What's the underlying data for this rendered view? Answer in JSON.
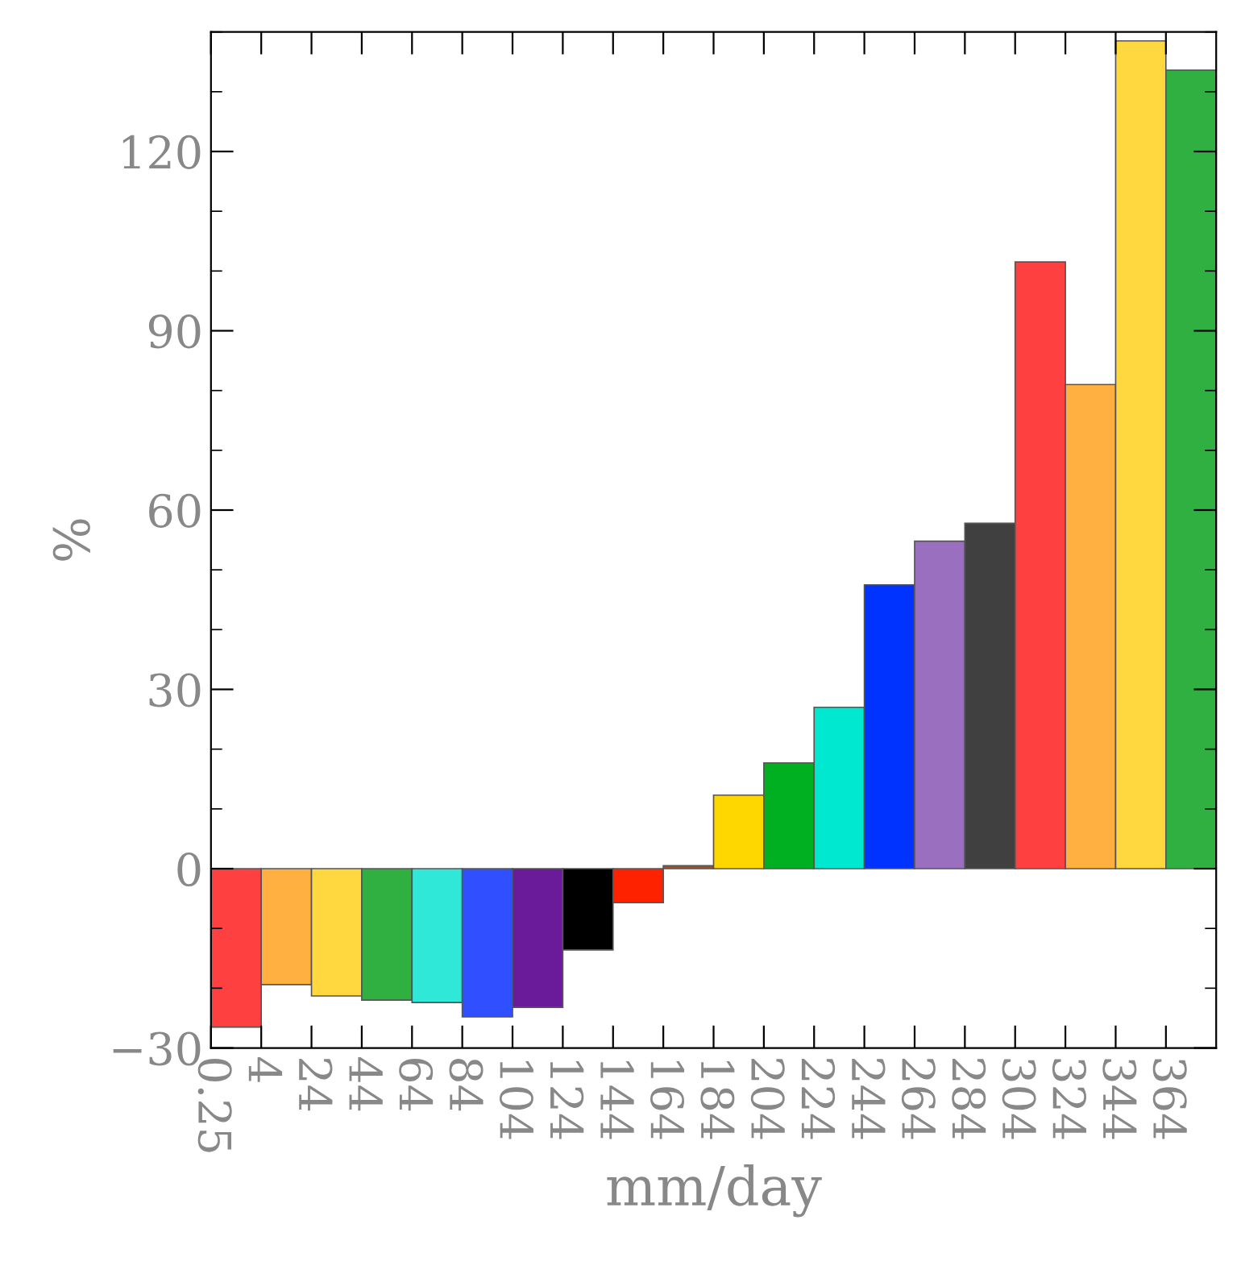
{
  "chart_data": {
    "type": "bar",
    "xlabel": "mm/day",
    "ylabel": "%",
    "categories": [
      "0.25",
      "4",
      "24",
      "44",
      "64",
      "84",
      "104",
      "124",
      "144",
      "164",
      "184",
      "204",
      "224",
      "244",
      "264",
      "284",
      "304",
      "324",
      "344",
      "364"
    ],
    "values": [
      -26.5,
      -19.4,
      -21.3,
      -22,
      -22.4,
      -24.8,
      -23.2,
      -13.6,
      -5.7,
      0.5,
      12.3,
      17.7,
      27,
      47.5,
      54.8,
      57.8,
      101.5,
      81,
      138.5,
      133.6
    ],
    "colors": [
      "#ff4040",
      "#ffb040",
      "#ffd840",
      "#30b040",
      "#30e8d8",
      "#3050ff",
      "#6a1b9a",
      "#000000",
      "#ff2200",
      "#a0522d",
      "#ffd700",
      "#00b020",
      "#00e8d0",
      "#0033ff",
      "#9b6fc0",
      "#404040",
      "#ff4040",
      "#ffb040",
      "#ffd840",
      "#30b040"
    ],
    "ylim": [
      -30,
      140
    ],
    "yticks": [
      {
        "value": -30,
        "label": "−30"
      },
      0,
      30,
      60,
      90,
      120
    ],
    "grid": false
  }
}
